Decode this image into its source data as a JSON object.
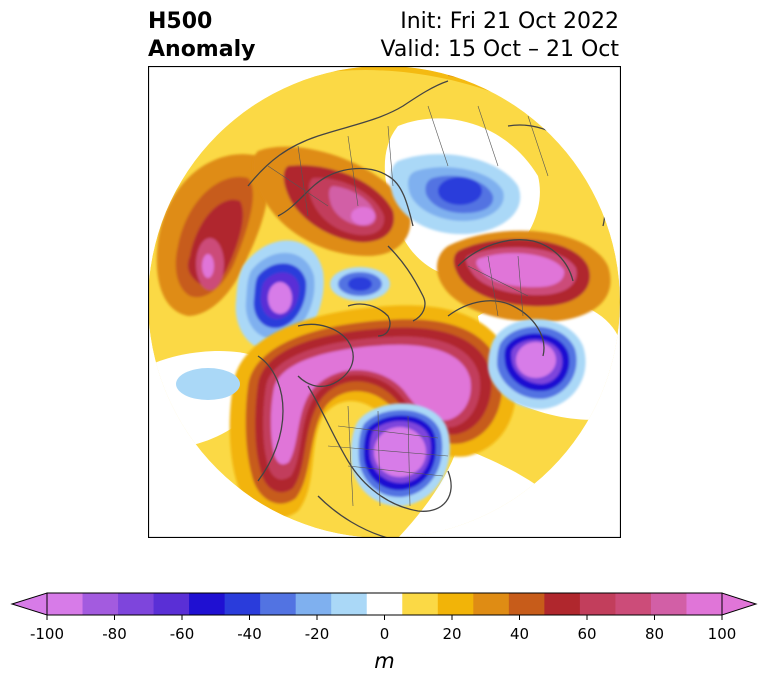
{
  "title": {
    "left_line1": "H500",
    "left_line2": "Anomaly",
    "right_line1": "Init: Fri 21 Oct 2022",
    "right_line2": "Valid: 15 Oct – 21 Oct"
  },
  "colorbar": {
    "unit": "m",
    "ticks": [
      "-100",
      "-80",
      "-60",
      "-40",
      "-20",
      "0",
      "20",
      "40",
      "60",
      "80",
      "100"
    ],
    "colors": [
      "#d77be8",
      "#a35bdf",
      "#7e45dc",
      "#5a2fd6",
      "#1f10d2",
      "#2a3cdb",
      "#5273e2",
      "#7fb0ef",
      "#aad8f7",
      "#ffffff",
      "#fbd945",
      "#f2b408",
      "#df8c14",
      "#c75c1a",
      "#b0272d",
      "#c23e5c",
      "#cc4c79",
      "#d25fa6",
      "#e075d8"
    ],
    "extend_low_color": "#d77be8",
    "extend_high_color": "#e075d8"
  }
}
